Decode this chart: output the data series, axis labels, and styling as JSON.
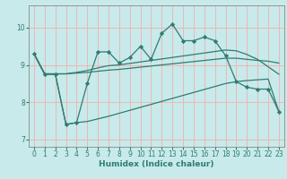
{
  "title": "",
  "xlabel": "Humidex (Indice chaleur)",
  "xlim": [
    -0.5,
    23.5
  ],
  "ylim": [
    6.8,
    10.6
  ],
  "yticks": [
    7,
    8,
    9,
    10
  ],
  "xticks": [
    0,
    1,
    2,
    3,
    4,
    5,
    6,
    7,
    8,
    9,
    10,
    11,
    12,
    13,
    14,
    15,
    16,
    17,
    18,
    19,
    20,
    21,
    22,
    23
  ],
  "bg_color": "#c8eaea",
  "grid_color": "#f0b0b0",
  "line_color": "#2e7d72",
  "series": [
    {
      "x": [
        0,
        1,
        2,
        3,
        4,
        5,
        6,
        7,
        8,
        9,
        10,
        11,
        12,
        13,
        14,
        15,
        16,
        17,
        18,
        19,
        20,
        21,
        22,
        23
      ],
      "y": [
        9.3,
        8.75,
        8.75,
        7.4,
        7.45,
        7.48,
        7.55,
        7.62,
        7.7,
        7.78,
        7.86,
        7.94,
        8.02,
        8.1,
        8.18,
        8.26,
        8.34,
        8.42,
        8.5,
        8.55,
        8.58,
        8.6,
        8.62,
        7.75
      ],
      "marker": false
    },
    {
      "x": [
        0,
        1,
        2,
        3,
        4,
        5,
        6,
        7,
        8,
        9,
        10,
        11,
        12,
        13,
        14,
        15,
        16,
        17,
        18,
        19,
        20,
        21,
        22,
        23
      ],
      "y": [
        9.3,
        8.76,
        8.76,
        8.76,
        8.78,
        8.8,
        8.83,
        8.86,
        8.88,
        8.91,
        8.94,
        8.97,
        9.0,
        9.03,
        9.06,
        9.09,
        9.12,
        9.15,
        9.18,
        9.18,
        9.15,
        9.12,
        9.1,
        9.05
      ],
      "marker": false
    },
    {
      "x": [
        0,
        1,
        2,
        3,
        4,
        5,
        6,
        7,
        8,
        9,
        10,
        11,
        12,
        13,
        14,
        15,
        16,
        17,
        18,
        19,
        20,
        21,
        22,
        23
      ],
      "y": [
        9.3,
        8.76,
        8.76,
        8.76,
        8.8,
        8.85,
        8.92,
        8.98,
        9.0,
        9.04,
        9.08,
        9.12,
        9.16,
        9.2,
        9.24,
        9.28,
        9.32,
        9.36,
        9.4,
        9.38,
        9.28,
        9.15,
        8.95,
        8.75
      ],
      "marker": false
    },
    {
      "x": [
        0,
        1,
        2,
        3,
        4,
        5,
        6,
        7,
        8,
        9,
        10,
        11,
        12,
        13,
        14,
        15,
        16,
        17,
        18,
        19,
        20,
        21,
        22,
        23
      ],
      "y": [
        9.3,
        8.75,
        8.75,
        7.4,
        7.45,
        8.5,
        9.35,
        9.35,
        9.05,
        9.2,
        9.5,
        9.15,
        9.85,
        10.1,
        9.65,
        9.65,
        9.75,
        9.65,
        9.25,
        8.55,
        8.4,
        8.35,
        8.35,
        7.75
      ],
      "marker": true
    }
  ]
}
